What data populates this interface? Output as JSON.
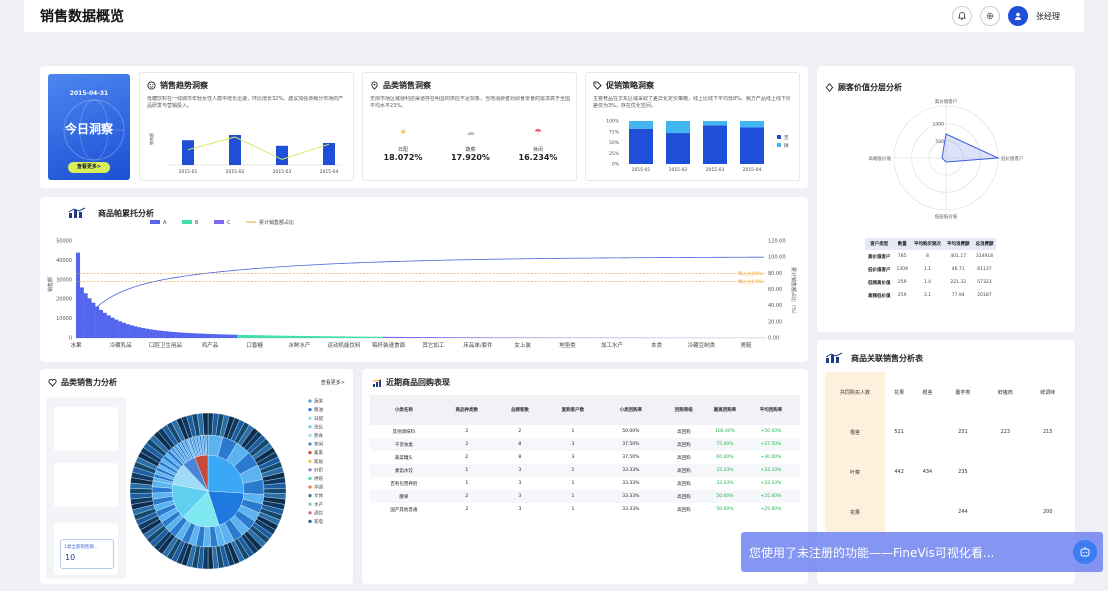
{
  "header": {
    "title": "销售数据概览",
    "user": "张经理"
  },
  "today": {
    "date": "2015-04-31",
    "title": "今日洞察",
    "button": "查看更多>"
  },
  "trend": {
    "title": "销售趋势洞察",
    "desc": "低糖饮料在一线城市年轻女性人群中增长迅速，环比增长32%。建议加强该细分市场的产品研发与营销投入。",
    "ylabel": "销售额",
    "categories": [
      "2015-01",
      "2015-02",
      "2015-03",
      "2015-04"
    ],
    "bars": [
      0.62,
      0.75,
      0.48,
      0.55
    ],
    "line": [
      0.38,
      0.7,
      0.14,
      0.52
    ]
  },
  "category": {
    "title": "品类销售洞察",
    "desc": "无限市场区域便利店渠道存在明显的供应不足现象，当地消费者对即食零食的需求高于全国平均水平23%。",
    "items": [
      {
        "name": "日配",
        "value": "18.072%"
      },
      {
        "name": "蔬菜",
        "value": "17.920%"
      },
      {
        "name": "休闲",
        "value": "16.234%"
      }
    ]
  },
  "promo": {
    "title": "促销策略洞察",
    "desc": "主要竞品在华东区域采取了差异化定价策略，线上比线下平均低8%。我方产品线上线下价差仅为3%，存在优化空间。",
    "yticks": [
      "100%",
      "75%",
      "50%",
      "25%",
      "0%"
    ],
    "categories": [
      "2015-01",
      "2015-02",
      "2015-03",
      "2015-04"
    ],
    "stacks": [
      [
        0.82,
        0.18
      ],
      [
        0.72,
        0.28
      ],
      [
        0.9,
        0.1
      ],
      [
        0.85,
        0.15
      ]
    ],
    "legend": [
      "苦",
      "微"
    ]
  },
  "value_layer": {
    "title": "顾客价值分层分析",
    "radar_labels": [
      "高价值客户",
      "低价值客户",
      "低层低价值",
      "高端低价值"
    ],
    "radar_ticks": [
      "1000",
      "500"
    ],
    "columns": [
      "客户类型",
      "数量",
      "平均购买频次",
      "平均消费额",
      "总消费额"
    ],
    "rows": [
      [
        "高价值客户",
        "785",
        "8",
        "401.17",
        "314918"
      ],
      [
        "低价值客户",
        "1309",
        "1.1",
        "46.71",
        "61137"
      ],
      [
        "低频高价值",
        "259",
        "1.4",
        "221.32",
        "57323"
      ],
      [
        "高频低价值",
        "259",
        "3.1",
        "77.94",
        "20187"
      ]
    ]
  },
  "pareto": {
    "title": "商品帕累托分析",
    "legend": [
      "A",
      "B",
      "C",
      "累计销售额占比"
    ],
    "ylabel_left": "销售额",
    "ylabel_right": "累计销售额占比（%）",
    "yticks_left": [
      "50000",
      "40000",
      "30000",
      "20000",
      "10000",
      "0"
    ],
    "yticks_right": [
      "120.00",
      "100.00",
      "80.00",
      "60.00",
      "40.00",
      "20.00",
      "0.00"
    ],
    "xlabels": [
      "水果",
      "冷藏乳品",
      "口腔卫生用品",
      "鸡产品",
      "口香糖",
      "冰鲜水产",
      "运动机能饮料",
      "稿杆装速食面",
      "其它加工",
      "床品单/套件",
      "女上装",
      "地垫类",
      "加工水产",
      "本类",
      "冷藏豆制类",
      "男鞋"
    ],
    "ref_labels": [
      "累计占比80%",
      "累计占比70%"
    ]
  },
  "power": {
    "title": "品类销售力分析",
    "more": "查看更多>",
    "kpi_label": "1类全部销售额...",
    "kpi_value": "10",
    "legend": [
      "蔬果",
      "粮油",
      "日配",
      "洗化",
      "熟食",
      "休闲",
      "禽畜",
      "家居",
      "针织",
      "烘焙",
      "冲调",
      "文体",
      "水产",
      "酒饮",
      "家电"
    ]
  },
  "repurchase": {
    "title": "近期商品回购表现",
    "columns": [
      "小类名称",
      "商品种类数",
      "总顾客数",
      "复购客户数",
      "小类回购率",
      "回购等级",
      "最高回购率",
      "平均回购率"
    ],
    "rows": [
      [
        "其他调味料",
        "2",
        "2",
        "1",
        "50.00%",
        "高回购",
        "100.00%",
        "+50.00%"
      ],
      [
        "干货食类",
        "2",
        "8",
        "3",
        "37.50%",
        "高回购",
        "75.00%",
        "+37.50%"
      ],
      [
        "蔬菜罐头",
        "2",
        "8",
        "3",
        "37.50%",
        "高回购",
        "60.00%",
        "+30.00%"
      ],
      [
        "素馅水饺",
        "1",
        "3",
        "1",
        "33.33%",
        "高回购",
        "33.33%",
        "+33.33%"
      ],
      [
        "百利包营养奶",
        "1",
        "3",
        "1",
        "33.33%",
        "高回购",
        "33.33%",
        "+33.33%"
      ],
      [
        "腰果",
        "2",
        "3",
        "1",
        "33.33%",
        "高回购",
        "50.00%",
        "+25.00%"
      ],
      [
        "国产其他普通",
        "2",
        "3",
        "1",
        "33.33%",
        "高回购",
        "50.00%",
        "+25.00%"
      ]
    ]
  },
  "assoc": {
    "title": "商品关联销售分析表",
    "corner": "共同购买人数",
    "columns": [
      "花果",
      "根茎",
      "薯芋类",
      "鲜猪肉",
      "鲜调味"
    ],
    "rows": [
      {
        "name": "根茎",
        "vals": [
          "521",
          "",
          "231",
          "223",
          "215"
        ]
      },
      {
        "name": "叶菜",
        "vals": [
          "442",
          "434",
          "235",
          "",
          ""
        ]
      },
      {
        "name": "花果",
        "vals": [
          "",
          "",
          "244",
          "",
          "200"
        ]
      }
    ]
  },
  "watermark": "您使用了未注册的功能——FineVis可视化看..."
}
